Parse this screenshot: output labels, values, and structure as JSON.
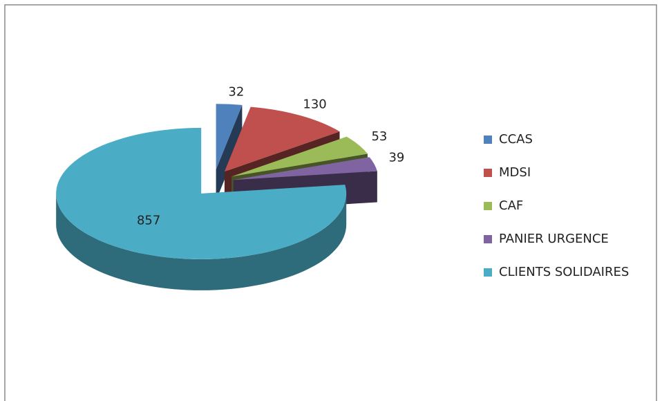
{
  "chart_data": {
    "type": "pie3d",
    "categories": [
      "CCAS",
      "MDSI",
      "CAF",
      "PANIER URGENCE",
      "CLIENTS SOLIDAIRES"
    ],
    "values": [
      32,
      130,
      53,
      39,
      857
    ],
    "colors": [
      "#4f81bd",
      "#c0504d",
      "#9bbb59",
      "#8064a2",
      "#4bacc6"
    ],
    "legend": "right"
  }
}
